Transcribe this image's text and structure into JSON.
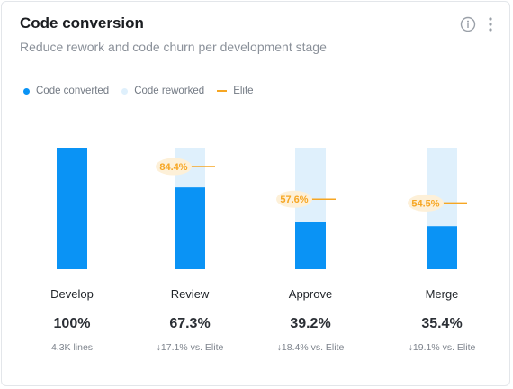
{
  "card": {
    "title": "Code conversion",
    "subtitle": "Reduce rework and code churn per development stage"
  },
  "icons": {
    "info": "info-circle-icon",
    "more": "vertical-ellipsis-icon"
  },
  "legend": {
    "converted": "Code converted",
    "reworked": "Code reworked",
    "elite": "Elite"
  },
  "colors": {
    "converted": "#0a93f5",
    "reworked": "#dff0fc",
    "elite": "#f6a623",
    "elite_label_bg": "#fdf0d8"
  },
  "stages": [
    {
      "name": "Develop",
      "value": "100%",
      "sub": "4.3K lines"
    },
    {
      "name": "Review",
      "value": "67.3%",
      "sub": "↓17.1% vs. Elite"
    },
    {
      "name": "Approve",
      "value": "39.2%",
      "sub": "↓18.4% vs. Elite"
    },
    {
      "name": "Merge",
      "value": "35.4%",
      "sub": "↓19.1% vs. Elite"
    }
  ],
  "chart_data": {
    "type": "bar",
    "categories": [
      "Develop",
      "Review",
      "Approve",
      "Merge"
    ],
    "series": [
      {
        "name": "Code converted",
        "values": [
          100,
          67.3,
          39.2,
          35.4
        ]
      },
      {
        "name": "Code reworked",
        "values": [
          0,
          32.7,
          60.8,
          64.6
        ]
      }
    ],
    "elite": {
      "values": [
        null,
        84.4,
        57.6,
        54.5
      ],
      "labels": [
        "",
        "84.4%",
        "57.6%",
        "54.5%"
      ]
    },
    "ylim": [
      0,
      100
    ],
    "stacked": true,
    "grid": false,
    "legend": "top-left"
  }
}
